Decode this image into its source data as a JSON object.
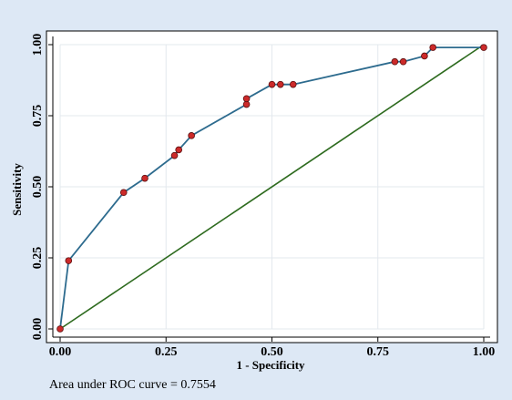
{
  "chart_data": {
    "type": "line",
    "xlabel": "1 - Specificity",
    "ylabel": "Sensitivity",
    "xlim": [
      0,
      1
    ],
    "ylim": [
      0,
      1
    ],
    "x_ticks": [
      "0.00",
      "0.25",
      "0.50",
      "0.75",
      "1.00"
    ],
    "y_ticks": [
      "0.00",
      "0.25",
      "0.50",
      "0.75",
      "1.00"
    ],
    "grid": true,
    "note": "Area under ROC curve = 0.7554",
    "series": [
      {
        "type": "line",
        "color": "#2d6b8e",
        "marker_color": "#cc2a2a",
        "points": [
          [
            0.0,
            0.0
          ],
          [
            0.02,
            0.24
          ],
          [
            0.15,
            0.48
          ],
          [
            0.2,
            0.53
          ],
          [
            0.27,
            0.61
          ],
          [
            0.28,
            0.63
          ],
          [
            0.31,
            0.68
          ],
          [
            0.44,
            0.79
          ],
          [
            0.44,
            0.81
          ],
          [
            0.5,
            0.86
          ],
          [
            0.52,
            0.86
          ],
          [
            0.55,
            0.86
          ],
          [
            0.79,
            0.94
          ],
          [
            0.81,
            0.94
          ],
          [
            0.86,
            0.96
          ],
          [
            0.88,
            0.99
          ],
          [
            1.0,
            0.99
          ]
        ]
      },
      {
        "type": "reference",
        "color": "#2e6b1f",
        "points": [
          [
            0,
            0
          ],
          [
            1,
            1
          ]
        ]
      }
    ]
  },
  "colors": {
    "background": "#dde8f5",
    "plot_area": "#ffffff",
    "grid": "#e3e8ee"
  }
}
